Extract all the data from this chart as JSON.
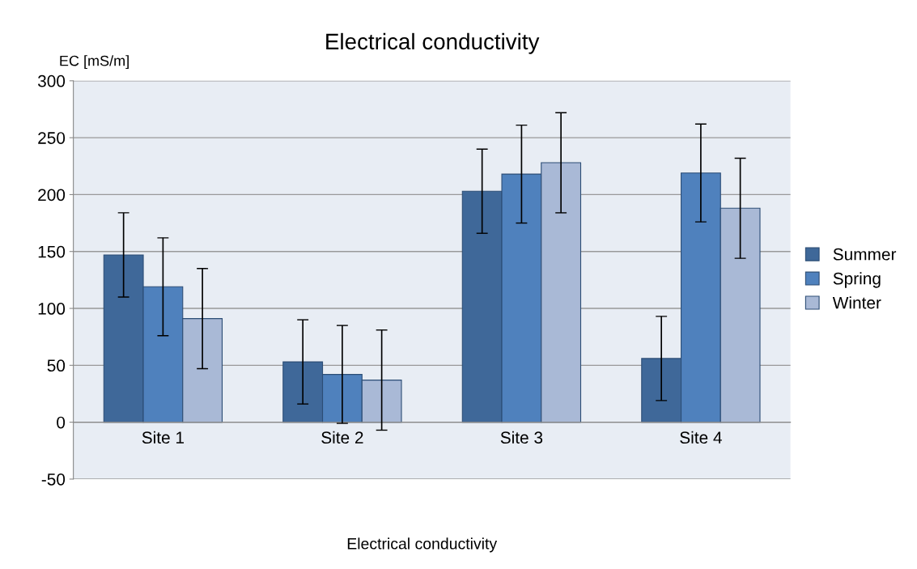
{
  "chart_data": {
    "type": "bar",
    "title": "Electrical conductivity",
    "xlabel": "Electrical conductivity",
    "ylabel": "EC [mS/m]",
    "categories": [
      "Site 1",
      "Site 2",
      "Site 3",
      "Site 4"
    ],
    "series": [
      {
        "name": "Summer",
        "color": "#3f6899",
        "values": [
          147,
          53,
          203,
          56
        ],
        "errors": [
          37,
          37,
          37,
          37
        ]
      },
      {
        "name": "Spring",
        "color": "#4f81bd",
        "values": [
          119,
          42,
          218,
          219
        ],
        "errors": [
          43,
          43,
          43,
          43
        ]
      },
      {
        "name": "Winter",
        "color": "#a9b9d6",
        "values": [
          91,
          37,
          228,
          188
        ],
        "errors": [
          44,
          44,
          44,
          44
        ]
      }
    ],
    "ylim": [
      -50,
      300
    ],
    "yticks": [
      -50,
      0,
      50,
      100,
      150,
      200,
      250,
      300
    ],
    "grid": "y",
    "legend": "right"
  }
}
